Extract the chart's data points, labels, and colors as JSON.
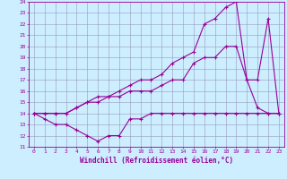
{
  "xlabel": "Windchill (Refroidissement éolien,°C)",
  "bg_color": "#cceeff",
  "grid_color": "#9999bb",
  "line_color": "#990099",
  "xmin": -0.5,
  "xmax": 23.5,
  "ymin": 11,
  "ymax": 24,
  "xticks": [
    0,
    1,
    2,
    3,
    4,
    5,
    6,
    7,
    8,
    9,
    10,
    11,
    12,
    13,
    14,
    15,
    16,
    17,
    18,
    19,
    20,
    21,
    22,
    23
  ],
  "yticks": [
    11,
    12,
    13,
    14,
    15,
    16,
    17,
    18,
    19,
    20,
    21,
    22,
    23,
    24
  ],
  "line1_x": [
    0,
    1,
    2,
    3,
    4,
    5,
    6,
    7,
    8,
    9,
    10,
    11,
    12,
    13,
    14,
    15,
    16,
    17,
    18,
    19,
    20,
    21,
    22,
    23
  ],
  "line1_y": [
    14,
    13.5,
    13,
    13,
    12.5,
    12,
    11.5,
    12,
    12,
    13.5,
    13.5,
    14,
    14,
    14,
    14,
    14,
    14,
    14,
    14,
    14,
    14,
    14,
    14,
    14
  ],
  "line2_x": [
    0,
    1,
    2,
    3,
    4,
    5,
    6,
    7,
    8,
    9,
    10,
    11,
    12,
    13,
    14,
    15,
    16,
    17,
    18,
    19,
    20,
    21,
    22,
    23
  ],
  "line2_y": [
    14,
    14,
    14,
    14,
    14.5,
    15,
    15,
    15.5,
    15.5,
    16,
    16,
    16,
    16.5,
    17,
    17,
    18.5,
    19,
    19,
    20,
    20,
    17,
    14.5,
    14,
    14
  ],
  "line3_x": [
    0,
    1,
    2,
    3,
    4,
    5,
    6,
    7,
    8,
    9,
    10,
    11,
    12,
    13,
    14,
    15,
    16,
    17,
    18,
    19,
    20,
    21,
    22,
    23
  ],
  "line3_y": [
    14,
    14,
    14,
    14,
    14.5,
    15,
    15.5,
    15.5,
    16,
    16.5,
    17,
    17,
    17.5,
    18.5,
    19,
    19.5,
    22,
    22.5,
    23.5,
    24,
    17,
    17,
    22.5,
    14
  ]
}
